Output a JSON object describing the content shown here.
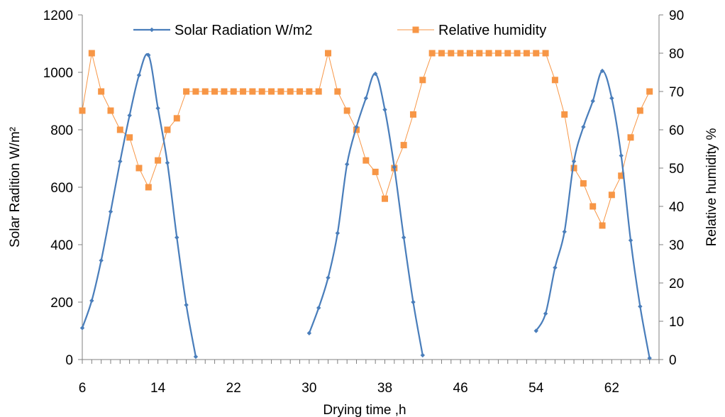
{
  "colors": {
    "solar": "#4A7EBB",
    "humidity": "#F79646",
    "axis": "#808080",
    "background": "#ffffff"
  },
  "chart_data": {
    "type": "line",
    "title": "",
    "xlabel": "Drying time ,h",
    "ylabel_left": "Solar Radition W/m²",
    "ylabel_right": "Relative humidity %",
    "xlim": [
      6,
      67
    ],
    "ylim_left": [
      0,
      1200
    ],
    "ylim_right": [
      0,
      90
    ],
    "x_ticks": [
      "6",
      "14",
      "22",
      "30",
      "38",
      "46",
      "54",
      "62"
    ],
    "y_ticks_left": [
      "0",
      "200",
      "400",
      "600",
      "800",
      "1000",
      "1200"
    ],
    "y_ticks_right": [
      "0",
      "10",
      "20",
      "30",
      "40",
      "50",
      "60",
      "70",
      "80",
      "90"
    ],
    "grid": false,
    "legend_position": "top",
    "series": [
      {
        "name": "Solar Radiation W/m2",
        "axis": "left",
        "marker": "diamond",
        "smooth": true,
        "segments": [
          {
            "x": [
              6,
              7,
              8,
              9,
              10,
              11,
              12,
              13,
              14,
              15,
              16,
              17,
              18
            ],
            "y": [
              110,
              205,
              345,
              515,
              690,
              850,
              990,
              1060,
              875,
              685,
              425,
              190,
              10
            ]
          },
          {
            "x": [
              30,
              31,
              32,
              33,
              34,
              35,
              36,
              37,
              38,
              39,
              40,
              41,
              42
            ],
            "y": [
              92,
              180,
              285,
              440,
              680,
              810,
              910,
              995,
              870,
              670,
              425,
              200,
              15
            ]
          },
          {
            "x": [
              54,
              55,
              56,
              57,
              58,
              59,
              60,
              61,
              62,
              63,
              64,
              65,
              66
            ],
            "y": [
              100,
              160,
              320,
              445,
              690,
              810,
              900,
              1005,
              910,
              710,
              415,
              185,
              5
            ]
          }
        ]
      },
      {
        "name": "Relative humidity",
        "axis": "right",
        "marker": "square",
        "smooth": false,
        "segments": [
          {
            "x": [
              6,
              7,
              8,
              9,
              10,
              11,
              12,
              13,
              14,
              15,
              16,
              17,
              18,
              19,
              20,
              21,
              22,
              23,
              24,
              25,
              26,
              27,
              28,
              29,
              30,
              31,
              32,
              33,
              34,
              35,
              36,
              37,
              38,
              39,
              40,
              41,
              42,
              43,
              44,
              45,
              46,
              47,
              48,
              49,
              50,
              51,
              52,
              53,
              54,
              55,
              56,
              57,
              58,
              59,
              60,
              61,
              62,
              63,
              64,
              65,
              66
            ],
            "y": [
              65,
              80,
              70,
              65,
              60,
              58,
              50,
              45,
              52,
              60,
              63,
              70,
              70,
              70,
              70,
              70,
              70,
              70,
              70,
              70,
              70,
              70,
              70,
              70,
              70,
              70,
              80,
              70,
              65,
              60,
              52,
              49,
              42,
              50,
              56,
              64,
              73,
              80,
              80,
              80,
              80,
              80,
              80,
              80,
              80,
              80,
              80,
              80,
              80,
              80,
              73,
              64,
              50,
              46,
              40,
              35,
              43,
              48,
              58,
              65,
              70
            ]
          }
        ]
      }
    ]
  }
}
